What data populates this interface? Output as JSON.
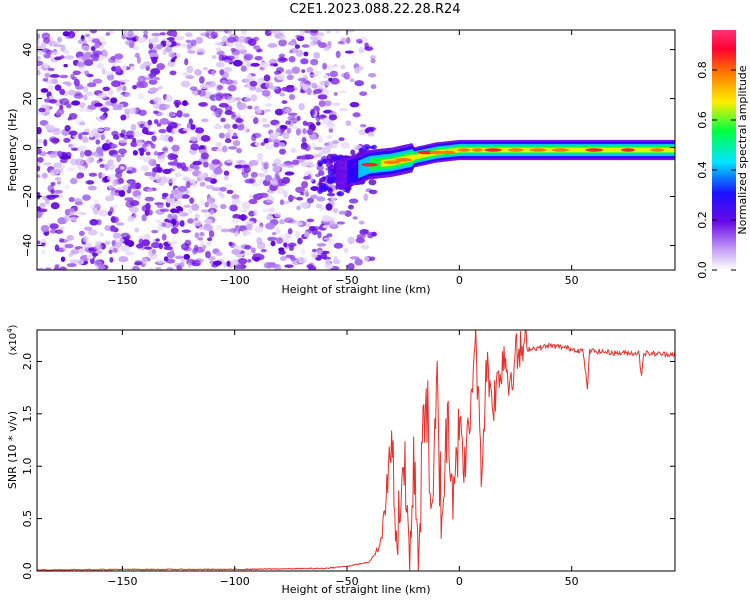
{
  "figure_title": "C2E1.2023.088.22.28.R24",
  "chart_data": [
    {
      "type": "heatmap",
      "title": "",
      "xlabel": "Height of straight line (km)",
      "ylabel": "Frequency (Hz)",
      "xlim": [
        -188,
        96
      ],
      "ylim": [
        -50,
        48
      ],
      "xticks": [
        -150,
        -100,
        -50,
        0,
        50
      ],
      "yticks": [
        -40,
        -20,
        0,
        20,
        40
      ],
      "colorbar": {
        "label": "Normalized spectral amplitude",
        "range": [
          0,
          0.96
        ],
        "ticks": [
          0.0,
          0.2,
          0.4,
          0.6,
          0.8
        ],
        "tick_labels": [
          "0.0",
          "0.2",
          "0.4",
          "0.6",
          "0.8"
        ],
        "colors": [
          "#ffffff",
          "#c9a6f5",
          "#7a1fe0",
          "#2a00ff",
          "#00e5ff",
          "#00ff40",
          "#ffee00",
          "#ff7a00",
          "#ff0030",
          "#ff3377"
        ]
      },
      "regions": [
        {
          "name": "noise",
          "x_range": [
            -188,
            -50
          ],
          "freq_range": [
            -50,
            48
          ],
          "amplitude": "0.05-0.15 random speckle"
        },
        {
          "name": "ridge",
          "x": [
            -58,
            -45,
            -40,
            -30,
            -20,
            -10,
            0,
            10,
            20,
            40,
            60,
            80,
            96
          ],
          "freq": [
            -12,
            -9,
            -7,
            -6,
            -4,
            -2,
            -1,
            -1,
            -1,
            -1,
            -1,
            -1,
            -1
          ],
          "peak_amplitude": [
            0.2,
            0.35,
            0.8,
            0.7,
            0.9,
            0.95,
            0.9,
            0.95,
            0.85,
            0.85,
            0.8,
            0.85,
            0.8
          ]
        }
      ]
    },
    {
      "type": "line",
      "title": "",
      "xlabel": "Height of straight line (km)",
      "ylabel": "SNR (10 * v/v)",
      "y_scale_label": "(x10",
      "y_scale_exp": "4",
      "y_scale_close": ")",
      "xlim": [
        -188,
        96
      ],
      "ylim": [
        0,
        2.3
      ],
      "xticks": [
        -150,
        -100,
        -50,
        0,
        50
      ],
      "yticks": [
        0.0,
        0.5,
        1.0,
        1.5,
        2.0
      ],
      "ytick_labels": [
        "0.0",
        "0.5",
        "1.0",
        "1.5",
        "2.0"
      ],
      "series": [
        {
          "color": "#e8302a",
          "x": [
            -188,
            -150,
            -100,
            -60,
            -50,
            -40,
            -35,
            -33,
            -30,
            -28,
            -25,
            -22,
            -20,
            -18,
            -15,
            -12,
            -10,
            -8,
            -5,
            -3,
            0,
            2,
            5,
            7,
            10,
            12,
            15,
            18,
            20,
            22,
            25,
            28,
            30,
            35,
            40,
            45,
            50,
            55,
            57,
            58,
            60,
            70,
            80,
            81,
            82,
            90,
            96
          ],
          "y": [
            0.005,
            0.01,
            0.01,
            0.02,
            0.04,
            0.08,
            0.25,
            0.6,
            1.35,
            0.2,
            1.1,
            0.1,
            1.05,
            0.15,
            1.9,
            0.3,
            1.8,
            0.5,
            1.5,
            0.9,
            1.4,
            1.0,
            1.45,
            2.3,
            0.9,
            2.0,
            1.6,
            1.9,
            2.1,
            1.8,
            2.05,
            2.1,
            2.12,
            2.13,
            2.15,
            2.14,
            2.12,
            2.1,
            1.75,
            2.1,
            2.1,
            2.08,
            2.08,
            1.85,
            2.08,
            2.07,
            2.07
          ]
        }
      ]
    }
  ]
}
